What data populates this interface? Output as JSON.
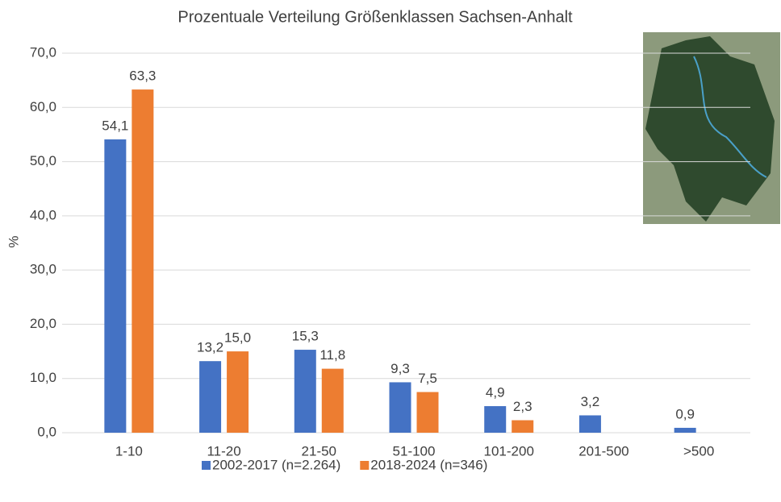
{
  "chart_data": {
    "type": "bar",
    "title": "Prozentuale Verteilung Größenklassen Sachsen-Anhalt",
    "y_label": "%",
    "categories": [
      "1-10",
      "11-20",
      "21-50",
      "51-100",
      "101-200",
      "201-500",
      ">500"
    ],
    "series": [
      {
        "name": "2002-2017 (n=2.264)",
        "color": "#4472c4",
        "values": [
          54.1,
          13.2,
          15.3,
          9.3,
          4.9,
          3.2,
          0.9
        ],
        "value_labels": [
          "54,1",
          "13,2",
          "15,3",
          "9,3",
          "4,9",
          "3,2",
          "0,9"
        ]
      },
      {
        "name": "2018-2024 (n=346)",
        "color": "#ed7d31",
        "values": [
          63.3,
          15.0,
          11.8,
          7.5,
          2.3,
          null,
          null
        ],
        "value_labels": [
          "63,3",
          "15,0",
          "11,8",
          "7,5",
          "2,3",
          null,
          null
        ]
      }
    ],
    "ylim": [
      0,
      70
    ],
    "yticks": [
      {
        "value": 0,
        "label": "0,0"
      },
      {
        "value": 10,
        "label": "10,0"
      },
      {
        "value": 20,
        "label": "20,0"
      },
      {
        "value": 30,
        "label": "30,0"
      },
      {
        "value": 40,
        "label": "40,0"
      },
      {
        "value": 50,
        "label": "50,0"
      },
      {
        "value": 60,
        "label": "60,0"
      },
      {
        "value": 70,
        "label": "70,0"
      }
    ],
    "grid": true,
    "legend": "bottom"
  }
}
